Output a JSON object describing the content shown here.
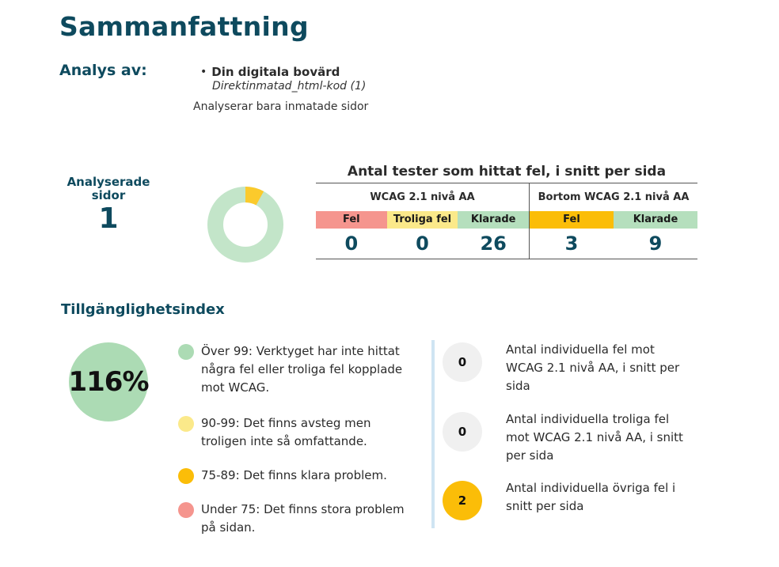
{
  "header": {
    "title": "Sammanfattning"
  },
  "analysis": {
    "label": "Analys av:",
    "site_name": "Din digitala bovärd",
    "site_source": "Direktinmatad_html-kod (1)",
    "note": "Analyserar bara inmatade sidor"
  },
  "pages": {
    "label": "Analyserade sidor",
    "count": "1"
  },
  "donut": {
    "passed_fraction": 0.92,
    "failed_fraction": 0.08,
    "colors": {
      "passed": "#c3e5c9",
      "failed": "#fbca2c"
    }
  },
  "tests": {
    "title": "Antal tester som hittat fel, i snitt per sida",
    "groups": [
      {
        "name": "WCAG 2.1 nivå AA",
        "columns": [
          {
            "label": "Fel",
            "value": "0"
          },
          {
            "label": "Troliga fel",
            "value": "0"
          },
          {
            "label": "Klarade",
            "value": "26"
          }
        ]
      },
      {
        "name": "Bortom WCAG 2.1 nivå AA",
        "columns": [
          {
            "label": "Fel",
            "value": "3"
          },
          {
            "label": "Klarade",
            "value": "9"
          }
        ]
      }
    ]
  },
  "index": {
    "title": "Tillgänglighetsindex",
    "value": "116%",
    "legend": [
      {
        "color": "#acdbb4",
        "text": "Över 99: Verktyget har inte hittat några fel eller troliga fel kopplade mot WCAG."
      },
      {
        "color": "#fbe98a",
        "text": "90-99: Det finns avsteg men troligen inte så omfattande."
      },
      {
        "color": "#fbbd08",
        "text": "75-89: Det finns klara problem."
      },
      {
        "color": "#f5958e",
        "text": "Under 75: Det finns stora problem på sidan."
      }
    ]
  },
  "stats": [
    {
      "value": "0",
      "text": "Antal individuella fel mot WCAG 2.1 nivå AA, i snitt per sida"
    },
    {
      "value": "0",
      "text": "Antal individuella troliga fel mot WCAG 2.1 nivå AA, i snitt per sida"
    },
    {
      "value": "2",
      "text": "Antal individuella övriga fel i snitt per sida"
    }
  ]
}
